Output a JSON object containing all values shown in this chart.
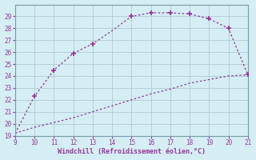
{
  "x": [
    9,
    10,
    11,
    12,
    13,
    14,
    15,
    16,
    17,
    18,
    19,
    20,
    21
  ],
  "y_upper": [
    19.2,
    22.3,
    24.5,
    25.9,
    26.7,
    27.8,
    29.0,
    29.3,
    29.3,
    29.2,
    28.8,
    28.0,
    24.1
  ],
  "y_lower": [
    19.2,
    19.7,
    20.1,
    20.5,
    21.0,
    21.5,
    22.0,
    22.5,
    22.9,
    23.4,
    23.7,
    24.0,
    24.1
  ],
  "xlim": [
    9,
    21
  ],
  "ylim": [
    19,
    30
  ],
  "xticks": [
    9,
    10,
    11,
    12,
    13,
    14,
    15,
    16,
    17,
    18,
    19,
    20,
    21
  ],
  "yticks": [
    19,
    20,
    21,
    22,
    23,
    24,
    25,
    26,
    27,
    28,
    29
  ],
  "xlabel": "Windchill (Refroidissement éolien,°C)",
  "line_color": "#993399",
  "marker_color": "#993399",
  "bg_color": "#d4eef4",
  "grid_color": "#b0c8d0",
  "font_color": "#993399",
  "marker_x": [
    10,
    11,
    12,
    13,
    15,
    16,
    17,
    18,
    19,
    20,
    21
  ],
  "marker_y_upper": [
    22.3,
    24.5,
    25.9,
    26.7,
    29.0,
    29.3,
    29.3,
    29.2,
    28.8,
    28.0,
    24.1
  ]
}
